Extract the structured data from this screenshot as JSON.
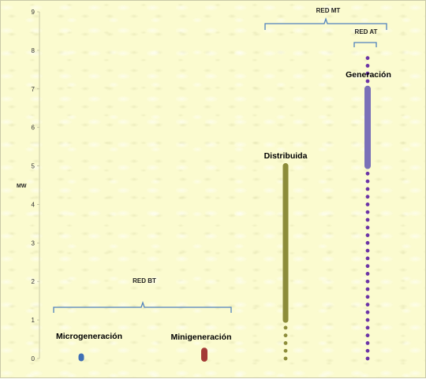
{
  "chart_data": {
    "type": "scatter",
    "ylabel": "MW",
    "ylim": [
      0,
      9
    ],
    "yticks": [
      "0",
      "1",
      "2",
      "3",
      "4",
      "5",
      "6",
      "7",
      "8",
      "9"
    ],
    "grid": false,
    "series": [
      {
        "name": "Microgeneración",
        "color": "#3f6fb5",
        "bands": [
          {
            "from": 0.0,
            "to": 0.03
          }
        ],
        "dots": []
      },
      {
        "name": "Minigeneración",
        "color": "#a33a36",
        "bands": [
          {
            "from": 0.0,
            "to": 0.2
          }
        ],
        "dots": []
      },
      {
        "name": "Distribuida",
        "color": "#8c8c3a",
        "bands": [
          {
            "from": 1.0,
            "to": 5.0
          }
        ],
        "dots": [
          0.0,
          0.2,
          0.4,
          0.6,
          0.8
        ]
      },
      {
        "name": "Generación",
        "color": "#7a70b8",
        "dot_color": "#6b33a6",
        "bands": [
          {
            "from": 5.0,
            "to": 7.0
          }
        ],
        "dots": [
          0.0,
          0.2,
          0.4,
          0.6,
          0.8,
          1.0,
          1.2,
          1.4,
          1.6,
          1.8,
          2.0,
          2.2,
          2.4,
          2.6,
          2.8,
          3.0,
          3.2,
          3.4,
          3.6,
          3.8,
          4.0,
          4.2,
          4.4,
          4.6,
          4.8,
          7.2,
          7.4,
          7.6,
          7.8
        ]
      }
    ],
    "annotations": {
      "red_bt": "RED BT",
      "red_mt": "RED MT",
      "red_at": "RED  AT"
    }
  }
}
